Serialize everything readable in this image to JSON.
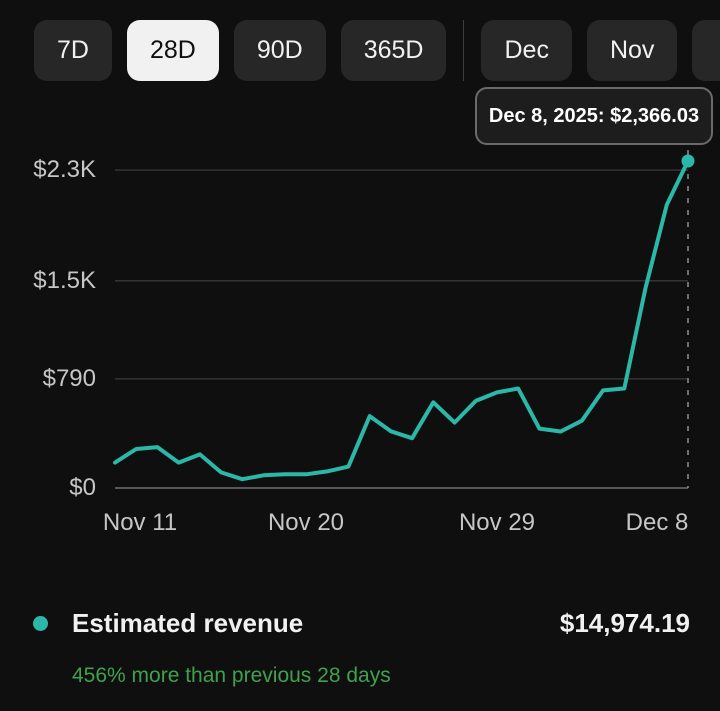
{
  "toolbar": {
    "periods": [
      {
        "label": "7D",
        "selected": false
      },
      {
        "label": "28D",
        "selected": true
      },
      {
        "label": "90D",
        "selected": false
      },
      {
        "label": "365D",
        "selected": false
      }
    ],
    "months": [
      {
        "label": "Dec"
      },
      {
        "label": "Nov"
      },
      {
        "label": ""
      }
    ]
  },
  "tooltip": {
    "text": "Dec 8, 2025: $2,366.03"
  },
  "chart_data": {
    "type": "line",
    "x": [
      "Nov 11",
      "Nov 12",
      "Nov 13",
      "Nov 14",
      "Nov 15",
      "Nov 16",
      "Nov 17",
      "Nov 18",
      "Nov 19",
      "Nov 20",
      "Nov 21",
      "Nov 22",
      "Nov 23",
      "Nov 24",
      "Nov 25",
      "Nov 26",
      "Nov 27",
      "Nov 28",
      "Nov 29",
      "Nov 30",
      "Dec 1",
      "Dec 2",
      "Dec 3",
      "Dec 4",
      "Dec 5",
      "Dec 6",
      "Dec 7",
      "Dec 8"
    ],
    "values": [
      184,
      282,
      296,
      184,
      243,
      113,
      64,
      92,
      99,
      99,
      120,
      155,
      520,
      410,
      360,
      620,
      473,
      630,
      692,
      720,
      430,
      409,
      487,
      706,
      720,
      1450,
      2050,
      2366.03
    ],
    "unit": "USD",
    "ylim": [
      0,
      2366.03
    ],
    "yticks": [
      {
        "label": "$0",
        "value": 0
      },
      {
        "label": "$790",
        "value": 790
      },
      {
        "label": "$1.5K",
        "value": 1500
      },
      {
        "label": "$2.3K",
        "value": 2300
      }
    ],
    "xticks": [
      {
        "label": "Nov 11",
        "index": 0
      },
      {
        "label": "Nov 20",
        "index": 9
      },
      {
        "label": "Nov 29",
        "index": 18
      },
      {
        "label": "Dec 8",
        "index": 27
      }
    ],
    "highlighted_point": {
      "date": "Dec 8, 2025",
      "value": 2366.03,
      "index": 27
    },
    "line_color": "#2bb8a8",
    "grid": true,
    "legend_position": "bottom"
  },
  "legend": {
    "series_label": "Estimated revenue",
    "total_value": "$14,974.19",
    "comparison_note": "456% more than previous 28 days",
    "comparison_color": "#3fa14d"
  }
}
